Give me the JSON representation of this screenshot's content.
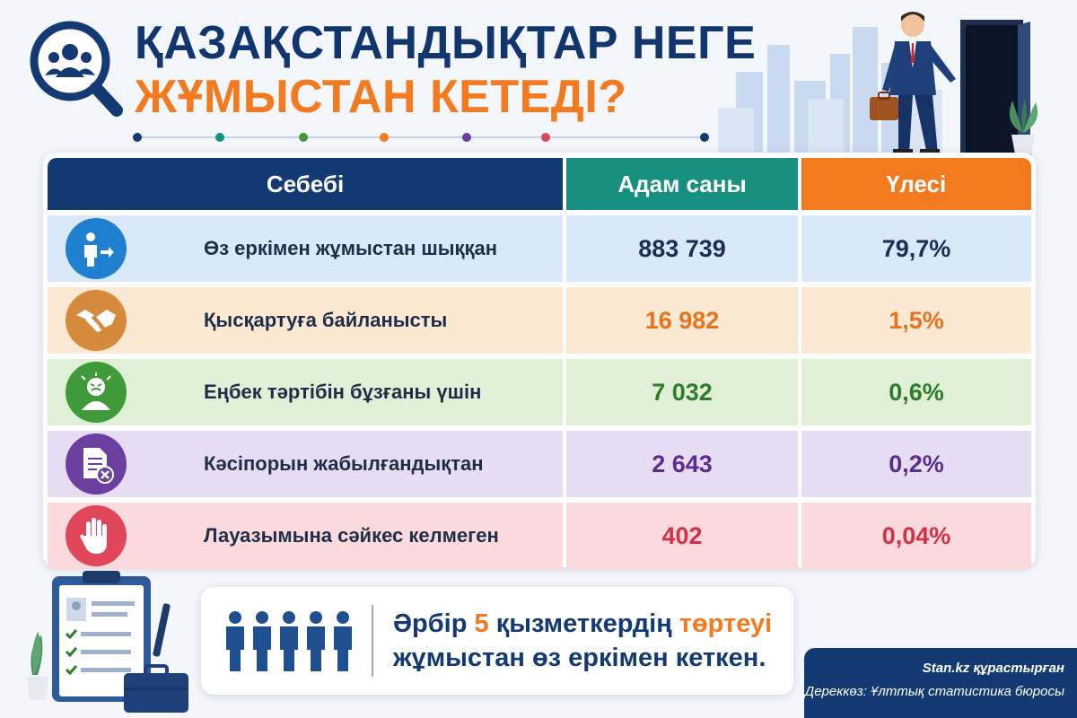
{
  "title": {
    "line1": "ҚАЗАҚСТАНДЫҚТАР НЕГЕ",
    "line2": "ЖҰМЫСТАН КЕТЕДІ?"
  },
  "table": {
    "headers": {
      "reason": "Себебі",
      "count": "Адам саны",
      "share": "Үлесі"
    },
    "rows": [
      {
        "reason": "Өз еркімен жұмыстан шыққан",
        "count": "883 739",
        "share": "79,7%",
        "icon": "person-exit-icon",
        "icon_color": "#1f7fd0",
        "bg": "#d9e9f9",
        "value_color": "#1a2d55"
      },
      {
        "reason": "Қысқартуға байланысты",
        "count": "16 982",
        "share": "1,5%",
        "icon": "handshake-icon",
        "icon_color": "#d58a3c",
        "bg": "#fce9d4",
        "value_color": "#e8731c"
      },
      {
        "reason": "Еңбек тәртібін бұзғаны үшін",
        "count": "7 032",
        "share": "0,6%",
        "icon": "upset-worker-icon",
        "icon_color": "#3f9a3a",
        "bg": "#dff0d6",
        "value_color": "#2e7d2c"
      },
      {
        "reason": "Кәсіпорын жабылғандықтан",
        "count": "2 643",
        "share": "0,2%",
        "icon": "closed-document-icon",
        "icon_color": "#6a3fa0",
        "bg": "#e7ddf2",
        "value_color": "#5b2d91"
      },
      {
        "reason": "Лауазымына сәйкес келмеген",
        "count": "402",
        "share": "0,04%",
        "icon": "stop-hand-icon",
        "icon_color": "#e0475a",
        "bg": "#fadadd",
        "value_color": "#d43148"
      }
    ]
  },
  "statement": {
    "part1": "Әрбір ",
    "number": "5",
    "part2": " қызметкердің ",
    "highlight": "төртеуі",
    "line2": "жұмыстан өз еркімен кеткен."
  },
  "credit": {
    "compiled": "Stan.kz құрастырған",
    "source": "Дереккөз: Ұлттық статистика бюросы"
  },
  "colors": {
    "navy": "#133a72",
    "teal": "#17907f",
    "orange": "#f47a20"
  }
}
